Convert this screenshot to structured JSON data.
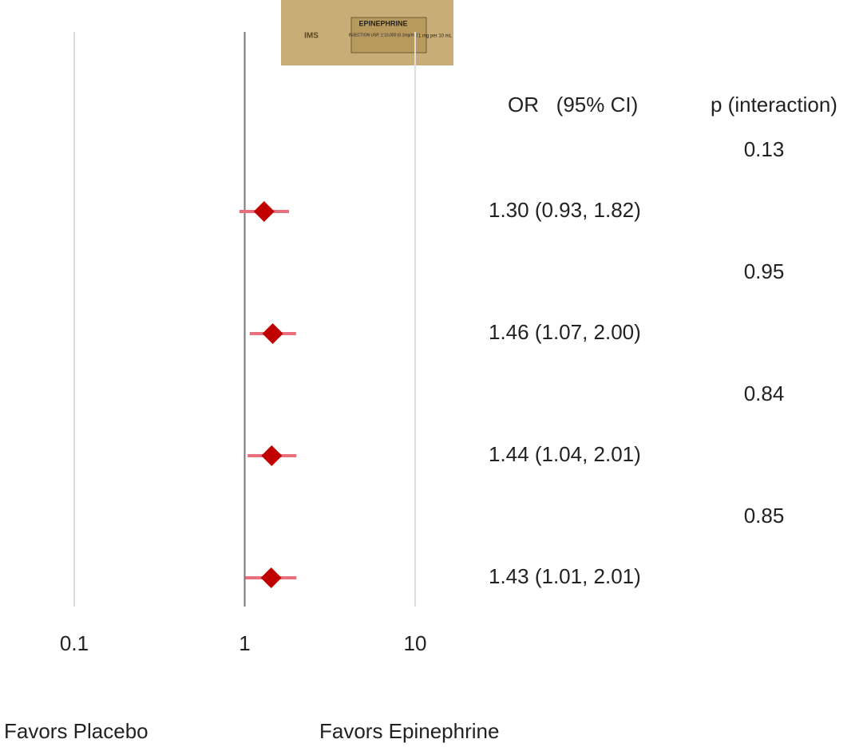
{
  "chart_data": {
    "type": "forest",
    "headers": [
      "OR   (95% CI)",
      "p (interaction)"
    ],
    "values": [
      1.3,
      1.46,
      1.44,
      1.43
    ],
    "ci_low": [
      0.93,
      1.07,
      1.04,
      1.01
    ],
    "ci_high": [
      1.82,
      2.0,
      2.01,
      2.01
    ],
    "value_labels": [
      "1.30 (0.93, 1.82)",
      "1.46 (1.07, 2.00)",
      "1.44 (1.04, 2.01)",
      "1.43 (1.01, 2.01)"
    ],
    "p_interaction": [
      0.13,
      0.95,
      0.84,
      0.85
    ],
    "xlim": [
      0.1,
      10
    ],
    "xticks": [
      0.1,
      1,
      10
    ],
    "log_x": true,
    "grid": true,
    "color": "#c00000",
    "ci_color": "#e8707c",
    "x_label_left": "Favors Placebo",
    "x_label_right": "Favors Epinephrine"
  },
  "image": {
    "title": "EPINEPHRINE",
    "subtitle": "INJECTION USP, 1:10,000 (0.1mg/mL)",
    "dose": "1 mg per 10 mL",
    "brand": "IMS"
  }
}
